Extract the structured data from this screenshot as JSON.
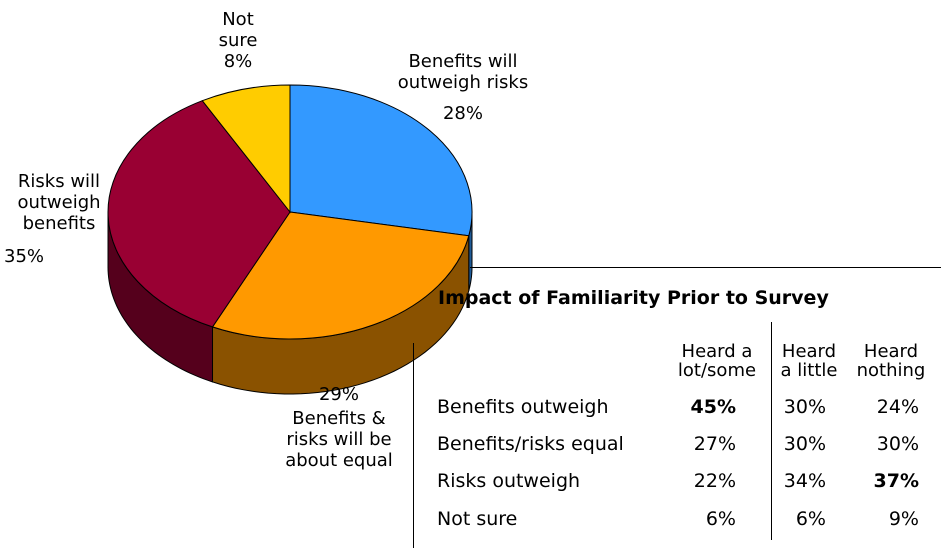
{
  "chart_data": [
    {
      "type": "pie",
      "slices": [
        {
          "label": "Benefits will outweigh risks",
          "value": 28,
          "value_label": "28%",
          "color": "#3399ff",
          "side_color": "#1f5c99",
          "label_lines": [
            "Benefits will",
            "outweigh risks"
          ]
        },
        {
          "label": "Benefits & risks will be about equal",
          "value": 29,
          "value_label": "29%",
          "color": "#ff9900",
          "side_color": "#8a5200",
          "label_lines": [
            "Benefits &",
            "risks will be",
            "about equal"
          ]
        },
        {
          "label": "Risks will outweigh benefits",
          "value": 35,
          "value_label": "35%",
          "color": "#990033",
          "side_color": "#55001c",
          "label_lines": [
            "Risks will",
            "outweigh",
            "benefits"
          ]
        },
        {
          "label": "Not sure",
          "value": 8,
          "value_label": "8%",
          "color": "#ffcc00",
          "side_color": "#8f7200",
          "label_lines": [
            "Not",
            "sure"
          ]
        }
      ]
    },
    {
      "type": "table",
      "title": "Impact of Familiarity Prior to Survey",
      "columns": [
        {
          "lines": [
            "Heard a",
            "lot/some"
          ]
        },
        {
          "lines": [
            "Heard",
            "a little"
          ]
        },
        {
          "lines": [
            "Heard",
            "nothing"
          ]
        }
      ],
      "rows": [
        {
          "label": "Benefits outweigh",
          "cells": [
            "45%",
            "30%",
            "24%"
          ],
          "bold": [
            true,
            false,
            false
          ]
        },
        {
          "label": "Benefits/risks equal",
          "cells": [
            "27%",
            "30%",
            "30%"
          ],
          "bold": [
            false,
            false,
            false
          ]
        },
        {
          "label": "Risks outweigh",
          "cells": [
            "22%",
            "34%",
            "37%"
          ],
          "bold": [
            false,
            false,
            true
          ]
        },
        {
          "label": "Not sure",
          "cells": [
            "6%",
            "6%",
            "9%"
          ],
          "bold": [
            false,
            false,
            false
          ]
        }
      ]
    }
  ]
}
